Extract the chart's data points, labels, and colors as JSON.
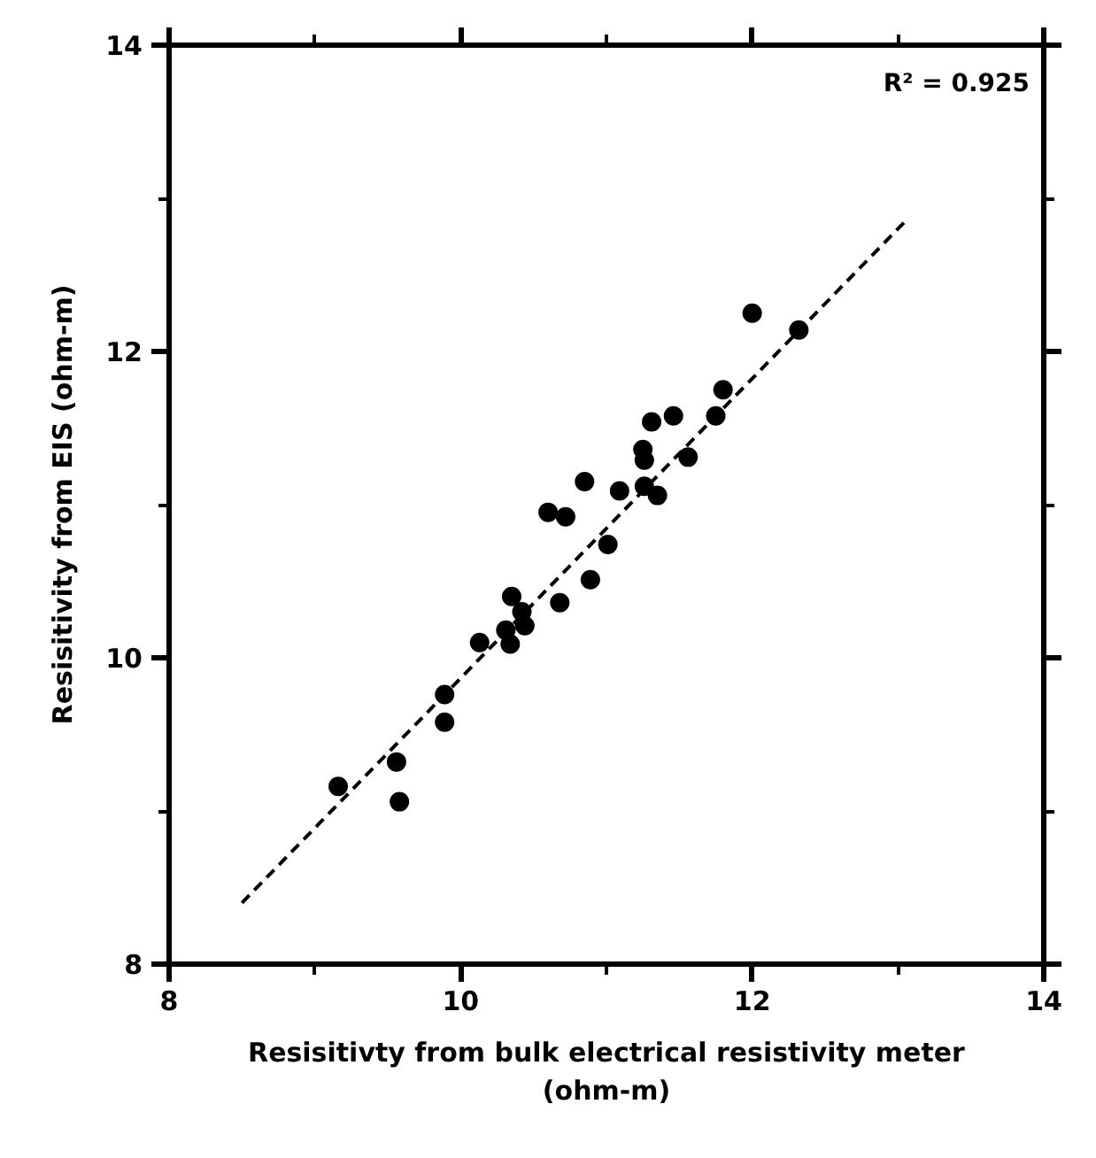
{
  "chart_data": {
    "type": "scatter",
    "xlabel": "Resisitivty from bulk electrical resistivity meter\n(ohm-m)",
    "ylabel": "Resisitivity from EIS (ohm-m)",
    "annotations": [
      "R² = 0.925"
    ],
    "xlim": [
      8,
      14
    ],
    "ylim": [
      8,
      14
    ],
    "xticks": [
      8,
      10,
      12,
      14
    ],
    "yticks": [
      8,
      10,
      12,
      14
    ],
    "grid": false,
    "series": [
      {
        "color": "#000000",
        "marker": "circle",
        "x": [
          9.16,
          9.56,
          9.58,
          9.89,
          9.89,
          10.13,
          10.31,
          10.34,
          10.44,
          10.35,
          10.42,
          10.68,
          10.89,
          11.01,
          10.6,
          10.72,
          10.85,
          11.09,
          11.26,
          11.35,
          11.25,
          11.26,
          11.31,
          11.46,
          11.56,
          11.75,
          11.8,
          12.0,
          12.32
        ],
        "values": [
          9.16,
          9.32,
          9.06,
          9.76,
          9.58,
          10.1,
          10.18,
          10.09,
          10.21,
          10.4,
          10.3,
          10.36,
          10.51,
          10.74,
          10.95,
          10.92,
          11.15,
          11.09,
          11.12,
          11.06,
          11.36,
          11.29,
          11.54,
          11.58,
          11.31,
          11.58,
          11.75,
          12.25,
          12.14
        ]
      },
      {
        "type": "line",
        "color": "#000000",
        "line_style": "dashed",
        "marker": "none",
        "x": [
          8.5,
          13.05
        ],
        "values": [
          8.4,
          12.85
        ]
      }
    ]
  }
}
